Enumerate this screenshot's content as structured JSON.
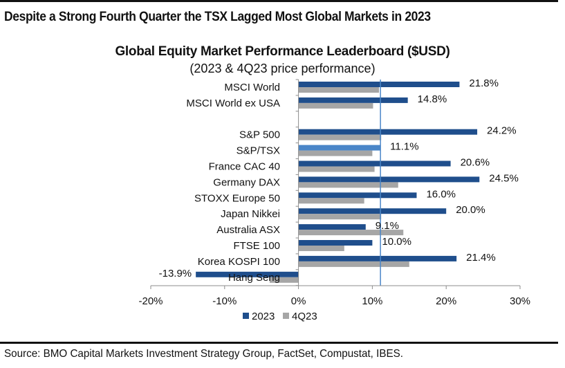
{
  "headline": "Despite a Strong Fourth Quarter the TSX Lagged Most Global Markets in 2023",
  "source": "Source: BMO Capital Markets Investment Strategy Group, FactSet, Compustat, IBES.",
  "colors": {
    "series_2023": "#1f4e8c",
    "series_2023_highlight": "#4a86c8",
    "series_4q23": "#a6a6a6",
    "reference_line": "#4a86c8",
    "axis": "#8c8c8c"
  },
  "chart_data": {
    "type": "bar",
    "orientation": "horizontal",
    "title": "Global Equity Market Performance Leaderboard ($USD)",
    "subtitle": "(2023 & 4Q23 price performance)",
    "xlabel": "",
    "ylabel": "",
    "xlim": [
      -20,
      30
    ],
    "x_ticks": [
      -20,
      -10,
      0,
      10,
      20,
      30
    ],
    "x_tick_labels": [
      "-20%",
      "-10%",
      "0%",
      "10%",
      "20%",
      "30%"
    ],
    "grid": false,
    "legend_position": "bottom",
    "highlight_category": "S&P/TSX",
    "reference_line_value": 11.1,
    "categories": [
      "MSCI World",
      "MSCI World ex USA",
      "",
      "S&P 500",
      "S&P/TSX",
      "France CAC 40",
      "Germany DAX",
      "STOXX Europe 50",
      "Japan Nikkei",
      "Australia ASX",
      "FTSE 100",
      "Korea KOSPI 100",
      "Hang Seng"
    ],
    "series": [
      {
        "name": "2023",
        "values": [
          21.8,
          14.8,
          null,
          24.2,
          11.1,
          20.6,
          24.5,
          16.0,
          20.0,
          9.1,
          10.0,
          21.4,
          -13.9
        ],
        "labels": [
          "21.8%",
          "14.8%",
          "",
          "24.2%",
          "11.1%",
          "20.6%",
          "24.5%",
          "16.0%",
          "20.0%",
          "9.1%",
          "10.0%",
          "21.4%",
          "-13.9%"
        ]
      },
      {
        "name": "4Q23",
        "values": [
          10.9,
          10.1,
          null,
          11.2,
          10.0,
          10.3,
          13.5,
          8.9,
          11.2,
          14.2,
          6.2,
          15.0,
          -3.9
        ]
      }
    ]
  }
}
